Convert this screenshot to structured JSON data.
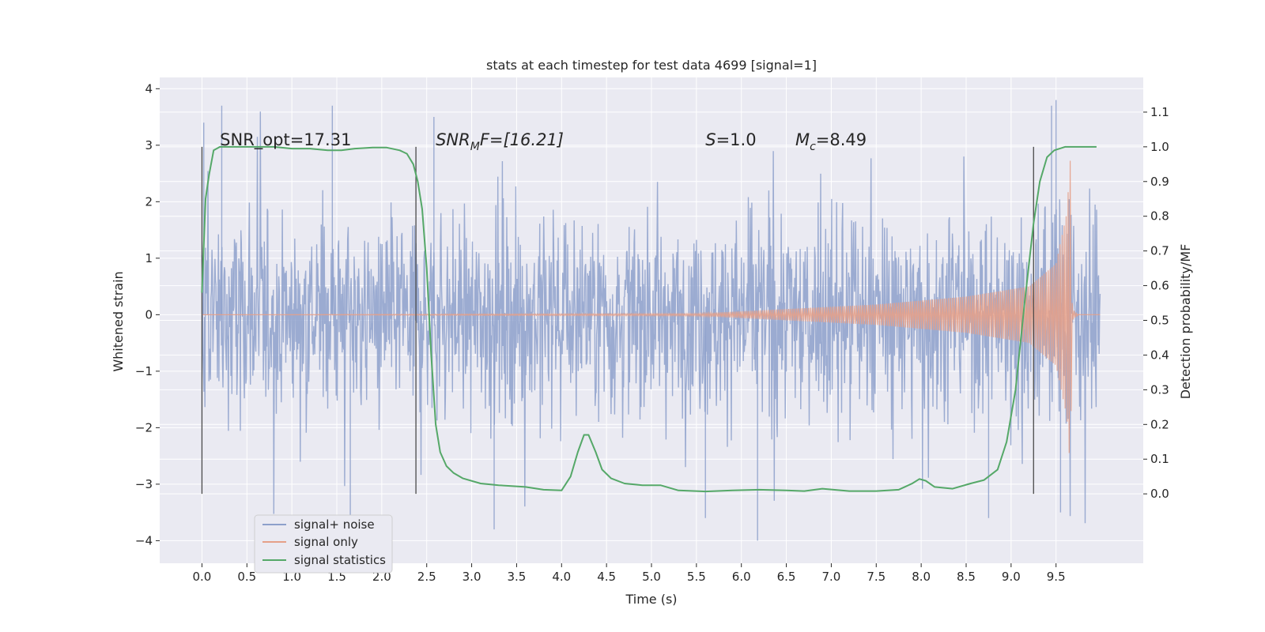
{
  "chart_data": {
    "type": "line",
    "title": "stats at each timestep for test data 4699 [signal=1]",
    "xlabel": "Time (s)",
    "ylabel": "Whitened strain",
    "ylabel_right": "Detection probability/MF",
    "xlim": [
      -0.47,
      10.47
    ],
    "ylim": [
      -4.4,
      4.2
    ],
    "ylim_right": [
      -0.2,
      1.2
    ],
    "x_ticks": [
      0.0,
      0.5,
      1.0,
      1.5,
      2.0,
      2.5,
      3.0,
      3.5,
      4.0,
      4.5,
      5.0,
      5.5,
      6.0,
      6.5,
      7.0,
      7.5,
      8.0,
      8.5,
      9.0,
      9.5
    ],
    "x_tick_labels": [
      "0.0",
      "0.5",
      "1.0",
      "1.5",
      "2.0",
      "2.5",
      "3.0",
      "3.5",
      "4.0",
      "4.5",
      "5.0",
      "5.5",
      "6.0",
      "6.5",
      "7.0",
      "7.5",
      "8.0",
      "8.5",
      "9.0",
      "9.5"
    ],
    "y_ticks": [
      -4,
      -3,
      -2,
      -1,
      0,
      1,
      2,
      3,
      4
    ],
    "y_tick_labels": [
      "−4",
      "−3",
      "−2",
      "−1",
      "0",
      "1",
      "2",
      "3",
      "4"
    ],
    "y_ticks_right": [
      0.0,
      0.1,
      0.2,
      0.3,
      0.4,
      0.5,
      0.6,
      0.7,
      0.8,
      0.9,
      1.0,
      1.1
    ],
    "y_tick_labels_right": [
      "0.0",
      "0.1",
      "0.2",
      "0.3",
      "0.4",
      "0.5",
      "0.6",
      "0.7",
      "0.8",
      "0.9",
      "1.0",
      "1.1"
    ],
    "grid": true,
    "legend_position": "lower-left",
    "series": [
      {
        "name": "signal+ noise",
        "color": "#8da0cb",
        "axis": "left",
        "kind": "noise-band",
        "x_range": [
          0.0,
          9.99
        ],
        "typical_envelope": [
          -1.7,
          1.7
        ],
        "peak_max": 3.8,
        "peak_min": -4.0,
        "extreme_points": [
          {
            "x": 0.02,
            "y": 3.4
          },
          {
            "x": 0.22,
            "y": 3.7
          },
          {
            "x": 1.45,
            "y": 3.7
          },
          {
            "x": 1.65,
            "y": -3.6
          },
          {
            "x": 2.58,
            "y": 3.5
          },
          {
            "x": 3.25,
            "y": -3.8
          },
          {
            "x": 5.6,
            "y": -3.6
          },
          {
            "x": 6.18,
            "y": -4.0
          },
          {
            "x": 9.45,
            "y": 3.7
          },
          {
            "x": 9.5,
            "y": 3.8
          },
          {
            "x": 9.55,
            "y": -3.5
          },
          {
            "x": 8.75,
            "y": -3.6
          }
        ]
      },
      {
        "name": "signal only",
        "color": "#e5a088",
        "axis": "left",
        "kind": "chirp",
        "chirp_start": 5.5,
        "merger_time": 9.66,
        "envelope_points": [
          {
            "x": 0.0,
            "y": 0.0
          },
          {
            "x": 5.5,
            "y": 0.02
          },
          {
            "x": 6.5,
            "y": 0.1
          },
          {
            "x": 7.5,
            "y": 0.18
          },
          {
            "x": 8.5,
            "y": 0.32
          },
          {
            "x": 9.2,
            "y": 0.5
          },
          {
            "x": 9.5,
            "y": 0.9
          },
          {
            "x": 9.62,
            "y": 1.8
          },
          {
            "x": 9.66,
            "y": 2.8
          },
          {
            "x": 9.68,
            "y": 0.1
          },
          {
            "x": 9.75,
            "y": 0.0
          },
          {
            "x": 9.99,
            "y": 0.0
          }
        ]
      },
      {
        "name": "signal statistics",
        "color": "#55a868",
        "axis": "right",
        "kind": "line",
        "x": [
          0.0,
          0.04,
          0.08,
          0.13,
          0.2,
          0.3,
          0.5,
          0.8,
          1.0,
          1.2,
          1.4,
          1.55,
          1.7,
          1.9,
          2.05,
          2.2,
          2.28,
          2.35,
          2.4,
          2.45,
          2.5,
          2.55,
          2.6,
          2.65,
          2.72,
          2.8,
          2.9,
          3.1,
          3.3,
          3.6,
          3.8,
          4.0,
          4.1,
          4.18,
          4.25,
          4.3,
          4.38,
          4.45,
          4.55,
          4.7,
          4.9,
          5.1,
          5.3,
          5.6,
          5.9,
          6.2,
          6.5,
          6.7,
          6.9,
          7.2,
          7.5,
          7.75,
          7.9,
          7.98,
          8.05,
          8.15,
          8.35,
          8.55,
          8.7,
          8.85,
          8.95,
          9.05,
          9.15,
          9.25,
          9.32,
          9.4,
          9.48,
          9.6,
          9.8,
          9.95
        ],
        "y": [
          0.58,
          0.85,
          0.92,
          0.99,
          1.0,
          1.0,
          1.0,
          1.0,
          0.995,
          0.995,
          0.99,
          0.99,
          0.995,
          0.998,
          0.998,
          0.99,
          0.98,
          0.95,
          0.9,
          0.82,
          0.65,
          0.4,
          0.2,
          0.12,
          0.08,
          0.06,
          0.045,
          0.03,
          0.025,
          0.02,
          0.012,
          0.01,
          0.05,
          0.12,
          0.17,
          0.17,
          0.12,
          0.07,
          0.045,
          0.03,
          0.025,
          0.025,
          0.01,
          0.007,
          0.01,
          0.012,
          0.01,
          0.008,
          0.015,
          0.008,
          0.008,
          0.012,
          0.03,
          0.043,
          0.038,
          0.02,
          0.015,
          0.03,
          0.04,
          0.07,
          0.15,
          0.3,
          0.55,
          0.78,
          0.9,
          0.97,
          0.99,
          1.0,
          1.0,
          1.0
        ]
      }
    ],
    "vertical_lines": [
      0.0,
      2.38,
      9.25
    ],
    "annotations": [
      {
        "id": "snr-opt",
        "x": 0.2,
        "y": 3.0,
        "text": "SNR_opt=17.31"
      },
      {
        "id": "snr-mf",
        "x": 2.6,
        "y": 3.0,
        "text": "SNRMF=[16.21]",
        "parts": [
          "SNR",
          "M",
          "F=[16.21]"
        ]
      },
      {
        "id": "s-value",
        "x": 5.6,
        "y": 3.0,
        "text": "S=1.0",
        "parts": [
          "S",
          "=1.0"
        ]
      },
      {
        "id": "mc-value",
        "x": 6.6,
        "y": 3.0,
        "text": "Mc=8.49",
        "parts": [
          "M",
          "c",
          "=8.49"
        ]
      }
    ]
  }
}
